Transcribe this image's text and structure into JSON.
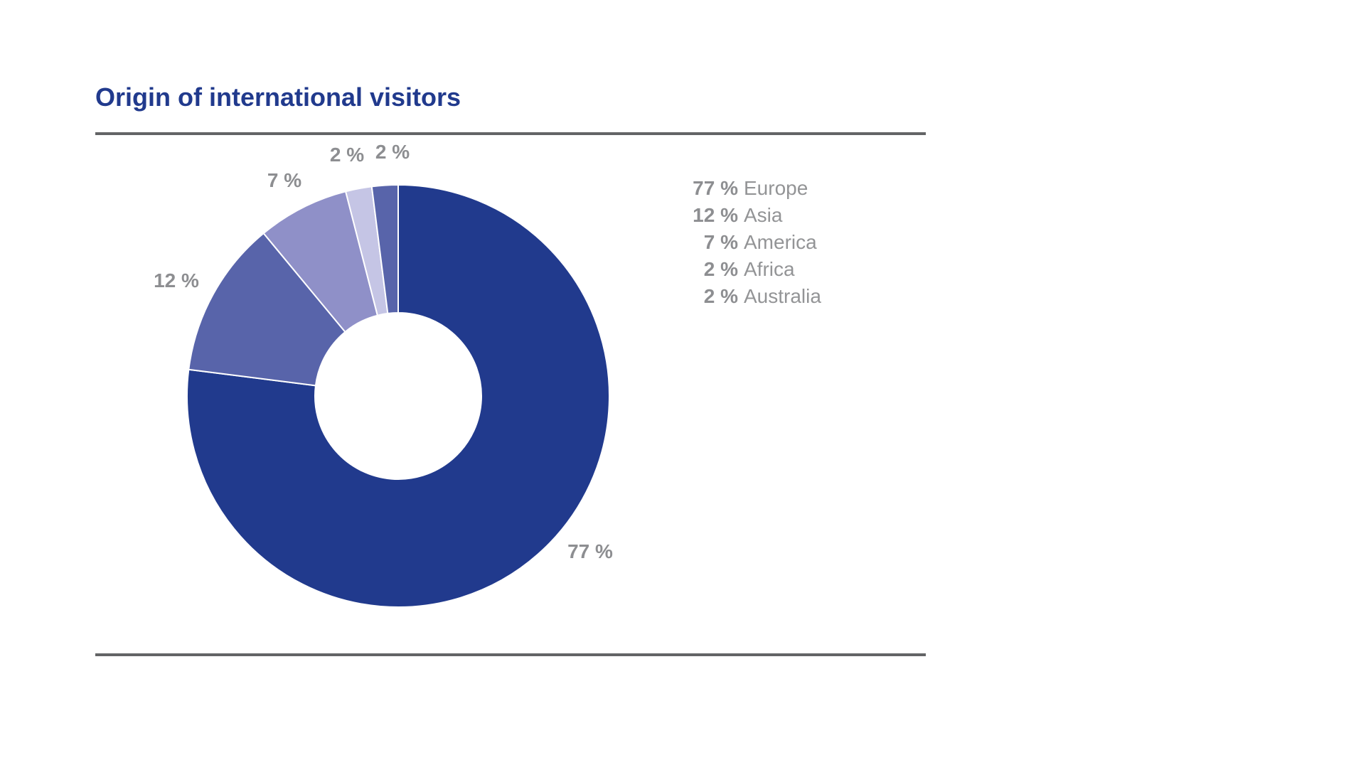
{
  "chart_data": {
    "type": "pie",
    "title": "Origin of international visitors",
    "hole": true,
    "start_angle_deg": 0,
    "direction": "clockwise",
    "slices": [
      {
        "name": "Europe",
        "value": 77,
        "label": "77 %",
        "color": "#213a8d"
      },
      {
        "name": "Asia",
        "value": 12,
        "label": "12 %",
        "color": "#5864aa"
      },
      {
        "name": "America",
        "value": 7,
        "label": "7 %",
        "color": "#8f90c8"
      },
      {
        "name": "Africa",
        "value": 2,
        "label": "2 %",
        "color": "#c5c5e5"
      },
      {
        "name": "Australia",
        "value": 2,
        "label": "2 %",
        "color": "#5864aa"
      }
    ],
    "legend": [
      {
        "value": "77 %",
        "name": "Europe"
      },
      {
        "value": "12 %",
        "name": "Asia"
      },
      {
        "value": "7 %",
        "name": "America"
      },
      {
        "value": "2 %",
        "name": "Africa"
      },
      {
        "value": "2 %",
        "name": "Australia"
      }
    ],
    "legend_position": "right"
  },
  "colors": {
    "title": "#213a8d",
    "rules": "#636466",
    "label_text": "#8d8e91"
  }
}
